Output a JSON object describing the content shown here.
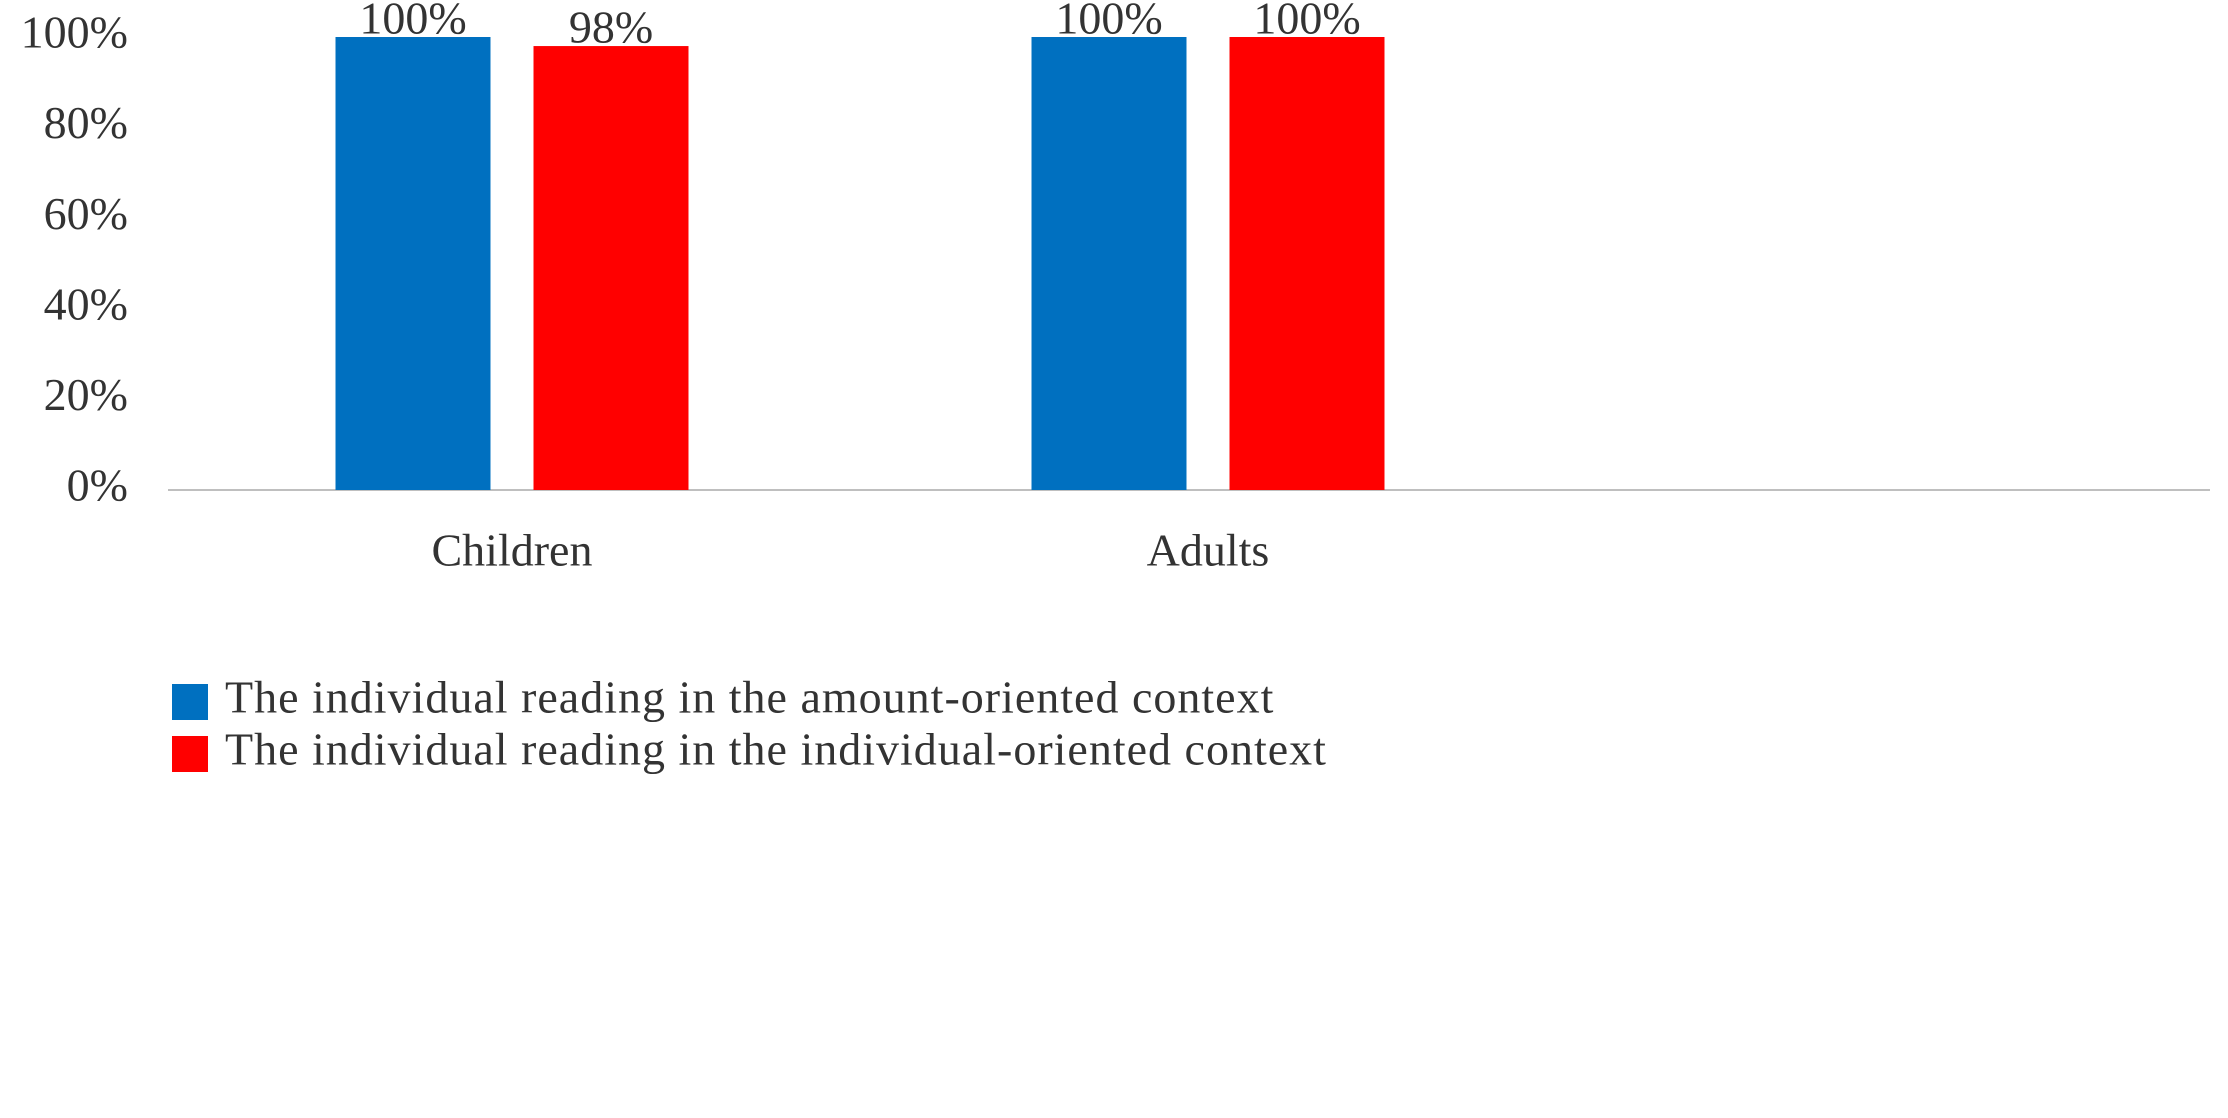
{
  "chart_data": {
    "type": "bar",
    "categories": [
      "Children",
      "Adults"
    ],
    "series": [
      {
        "name": "The individual reading in the amount-oriented context",
        "color": "#0070c0",
        "values": [
          100,
          100
        ],
        "value_labels": [
          "100%",
          "100%"
        ]
      },
      {
        "name": "The individual reading in the individual-oriented context",
        "color": "#ff0000",
        "values": [
          98,
          100
        ],
        "value_labels": [
          "98%",
          "100%"
        ]
      }
    ],
    "ylim": [
      0,
      100
    ],
    "yticks": [
      {
        "value": 0,
        "label": "0%"
      },
      {
        "value": 20,
        "label": "20%"
      },
      {
        "value": 40,
        "label": "40%"
      },
      {
        "value": 60,
        "label": "60%"
      },
      {
        "value": 80,
        "label": "80%"
      },
      {
        "value": 100,
        "label": "100%"
      }
    ],
    "grid": false,
    "legend": "bottom"
  }
}
